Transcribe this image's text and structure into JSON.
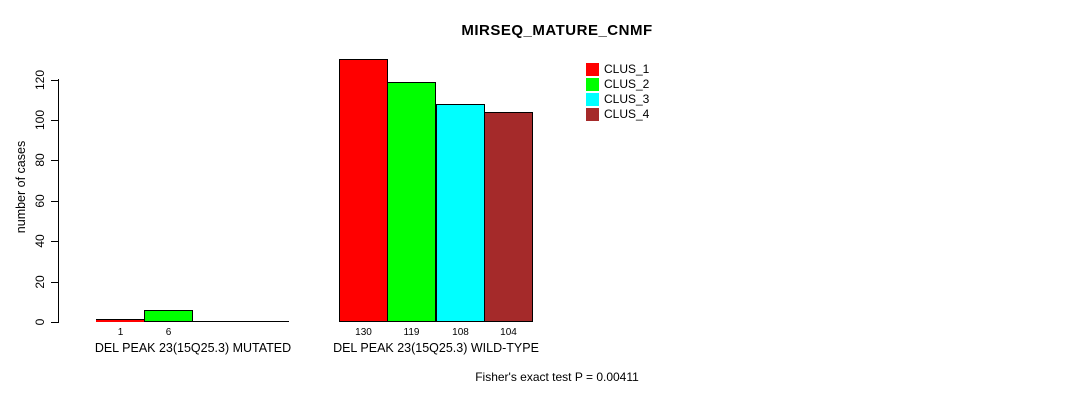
{
  "title": "MIRSEQ_MATURE_CNMF",
  "footer": "Fisher's exact test P = 0.00411",
  "y_axis": {
    "label": "number of cases",
    "ticks": [
      0,
      20,
      40,
      60,
      80,
      100,
      120
    ]
  },
  "legend": {
    "items": [
      {
        "label": "CLUS_1",
        "color": "#FF0000"
      },
      {
        "label": "CLUS_2",
        "color": "#00FF00"
      },
      {
        "label": "CLUS_3",
        "color": "#00FFFF"
      },
      {
        "label": "CLUS_4",
        "color": "#A52A2A"
      }
    ]
  },
  "chart_data": {
    "type": "bar",
    "title": "MIRSEQ_MATURE_CNMF",
    "xlabel": "",
    "ylabel": "number of cases",
    "ylim": [
      0,
      130
    ],
    "yticks": [
      0,
      20,
      40,
      60,
      80,
      100,
      120
    ],
    "grid": false,
    "legend_position": "top-right",
    "categories": [
      "DEL PEAK 23(15Q25.3) MUTATED",
      "DEL PEAK 23(15Q25.3) WILD-TYPE"
    ],
    "series": [
      {
        "name": "CLUS_1",
        "color": "#FF0000",
        "values": [
          1,
          130
        ]
      },
      {
        "name": "CLUS_2",
        "color": "#00FF00",
        "values": [
          6,
          119
        ]
      },
      {
        "name": "CLUS_3",
        "color": "#00FFFF",
        "values": [
          0,
          108
        ]
      },
      {
        "name": "CLUS_4",
        "color": "#A52A2A",
        "values": [
          0,
          104
        ]
      }
    ],
    "bar_labels": [
      [
        "1",
        "6",
        "",
        ""
      ],
      [
        "130",
        "119",
        "108",
        "104"
      ]
    ],
    "annotation": "Fisher's exact test P = 0.00411"
  }
}
